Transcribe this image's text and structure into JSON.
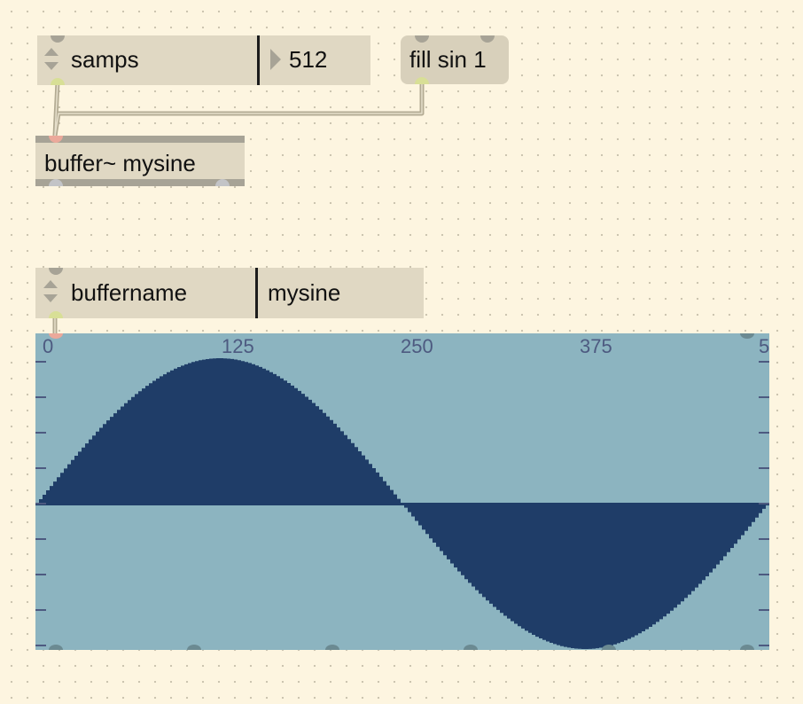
{
  "patch": {
    "attrui_samps": {
      "attribute": "samps",
      "value": "512"
    },
    "message_fill": {
      "text": "fill sin 1"
    },
    "buffer_object": {
      "text": "buffer~ mysine"
    },
    "attrui_buffername": {
      "attribute": "buffername",
      "value": "mysine"
    },
    "waveform": {
      "buffer": "mysine",
      "length": 512,
      "ruler_labels": [
        "0",
        "125",
        "250",
        "375",
        "5"
      ]
    }
  },
  "colors": {
    "canvas": "#fdf5e0",
    "object_fill": "#e0d8c3",
    "waveform_bg": "#8cb4c0",
    "waveform_fg": "#1f3d68",
    "patchcord": "#b3ab93"
  },
  "chart_data": {
    "type": "area",
    "function": "sin",
    "cycles": 1,
    "x_range": [
      0,
      512
    ],
    "y_range": [
      -1,
      1
    ],
    "tick_labels": [
      "0",
      "125",
      "250",
      "375",
      "5"
    ]
  }
}
